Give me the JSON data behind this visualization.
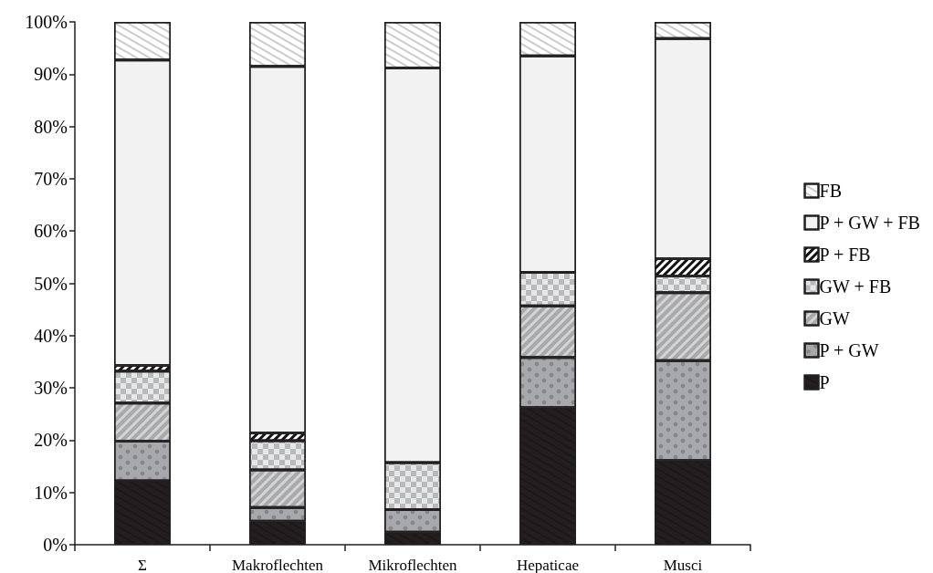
{
  "chart_data": {
    "type": "bar",
    "stacked": true,
    "categories": [
      "Σ",
      "Makroflechten",
      "Mikroflechten",
      "Hepaticae",
      "Musci"
    ],
    "series": [
      {
        "name": "P",
        "color": "#231f20",
        "values": [
          12.2,
          4.5,
          2.4,
          26.2,
          16.1
        ]
      },
      {
        "name": "P + GW",
        "color": "#a7a9ac",
        "values": [
          7.6,
          2.6,
          4.3,
          9.6,
          19.1
        ]
      },
      {
        "name": "GW",
        "color": "#d1d3d4",
        "values": [
          7.3,
          7.2,
          0,
          9.9,
          13.0
        ]
      },
      {
        "name": "GW + FB",
        "color": "#e6e7e8",
        "values": [
          6.1,
          5.6,
          9.0,
          6.4,
          3.2
        ]
      },
      {
        "name": "P + FB",
        "color": "#ffffff",
        "values": [
          1.1,
          1.5,
          0,
          0,
          3.3
        ]
      },
      {
        "name": "P + GW + FB",
        "color": "#f2f2f2",
        "values": [
          58.4,
          70.1,
          75.5,
          41.4,
          42.1
        ]
      },
      {
        "name": "FB",
        "color": "#ffffff",
        "values": [
          7.3,
          8.5,
          8.8,
          6.5,
          3.2
        ]
      }
    ],
    "ylim": [
      0,
      100
    ],
    "yticks": [
      {
        "value": 0,
        "label": "0%"
      },
      {
        "value": 10,
        "label": "10%"
      },
      {
        "value": 20,
        "label": "20%"
      },
      {
        "value": 30,
        "label": "30%"
      },
      {
        "value": 40,
        "label": "40%"
      },
      {
        "value": 50,
        "label": "50%"
      },
      {
        "value": 60,
        "label": "60%"
      },
      {
        "value": 70,
        "label": "70%"
      },
      {
        "value": 80,
        "label": "80%"
      },
      {
        "value": 90,
        "label": "90%"
      },
      {
        "value": 100,
        "label": "100%"
      }
    ],
    "grid": false,
    "legend": "right"
  }
}
